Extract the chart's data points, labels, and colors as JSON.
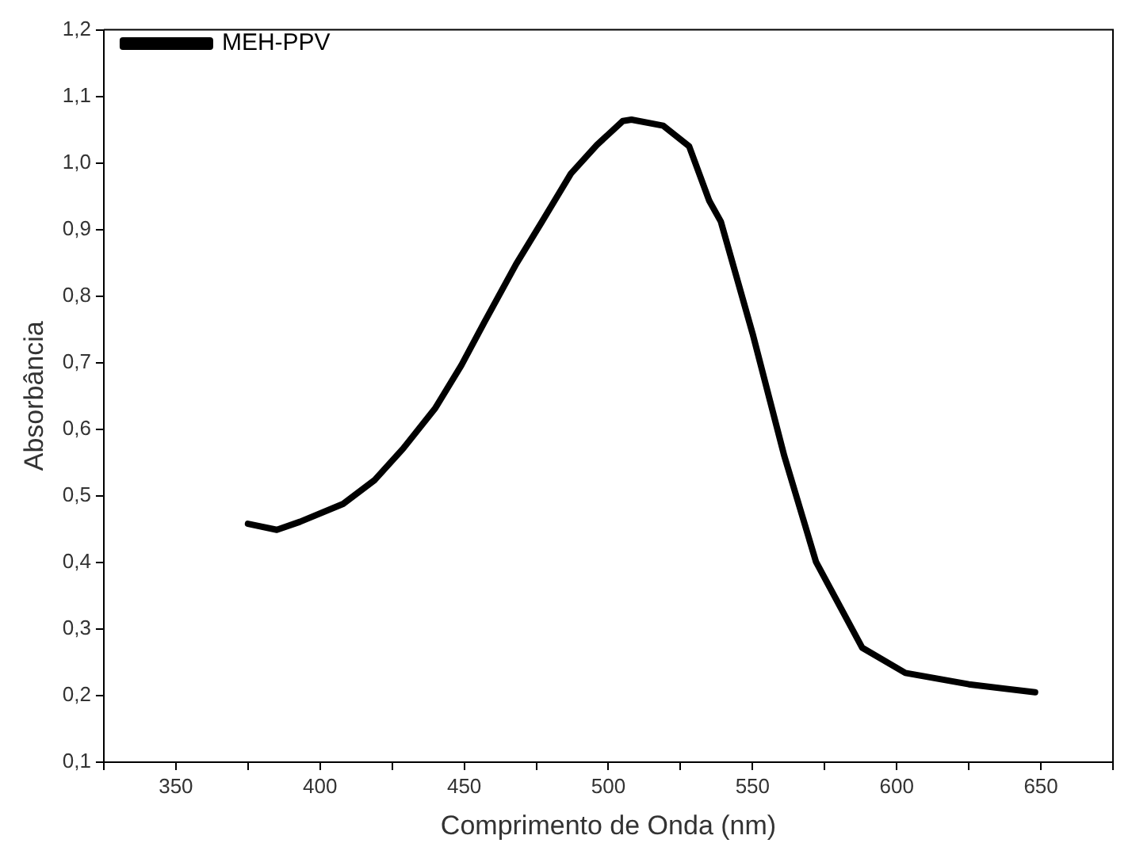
{
  "chart_data": {
    "type": "line",
    "xlabel": "Comprimento de Onda (nm)",
    "ylabel": "Absorbância",
    "legend": "top left",
    "marker": "none",
    "line_style": "solid",
    "grid": false,
    "xlim": [
      325,
      675
    ],
    "xticks": [
      {
        "value": 325,
        "label": null
      },
      350,
      {
        "value": 375,
        "label": null
      },
      400,
      {
        "value": 425,
        "label": null
      },
      450,
      {
        "value": 475,
        "label": null
      },
      500,
      {
        "value": 525,
        "label": null
      },
      550,
      {
        "value": 575,
        "label": null
      },
      600,
      {
        "value": 625,
        "label": null
      },
      650,
      {
        "value": 675,
        "label": null
      }
    ],
    "ylim": [
      0.1,
      1.2
    ],
    "yticks": [
      {
        "value": 0.1,
        "label": "0,1"
      },
      {
        "value": 0.2,
        "label": "0,2"
      },
      {
        "value": 0.3,
        "label": "0,3"
      },
      {
        "value": 0.4,
        "label": "0,4"
      },
      {
        "value": 0.5,
        "label": "0,5"
      },
      {
        "value": 0.6,
        "label": "0,6"
      },
      {
        "value": 0.7,
        "label": "0,7"
      },
      {
        "value": 0.8,
        "label": "0,8"
      },
      {
        "value": 0.9,
        "label": "0,9"
      },
      {
        "value": 1.0,
        "label": "1,0"
      },
      {
        "value": 1.1,
        "label": "1,1"
      },
      {
        "value": 1.2,
        "label": "1,2"
      }
    ],
    "series": [
      {
        "name": "MEH-PPV",
        "color": "#000000",
        "x": [
          375,
          385,
          393,
          408,
          419,
          429,
          440,
          449,
          457,
          468,
          477,
          487,
          496,
          505,
          508,
          519,
          528,
          535,
          539,
          550,
          561,
          572,
          588,
          603,
          625,
          648
        ],
        "values": [
          0.458,
          0.449,
          0.461,
          0.488,
          0.524,
          0.572,
          0.632,
          0.696,
          0.761,
          0.848,
          0.912,
          0.984,
          1.027,
          1.063,
          1.065,
          1.056,
          1.025,
          0.943,
          0.912,
          0.744,
          0.56,
          0.401,
          0.272,
          0.234,
          0.217,
          0.205
        ]
      }
    ]
  }
}
